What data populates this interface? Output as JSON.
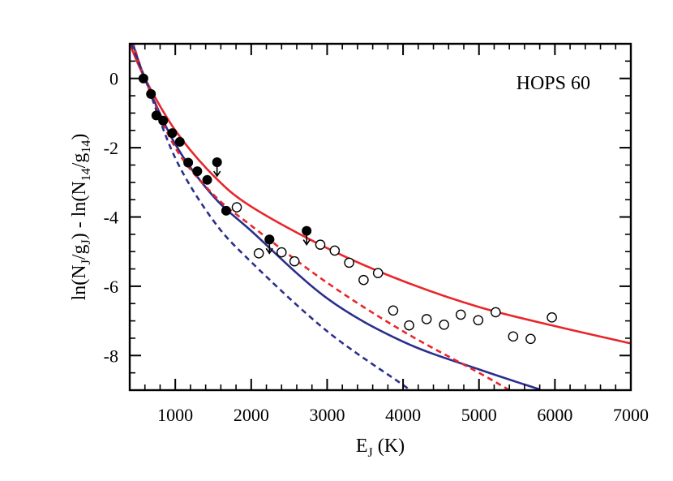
{
  "chart_data": {
    "type": "scatter",
    "annotation": "HOPS 60",
    "xlabel": {
      "main": "E",
      "sub": "J",
      "tail": " (K)"
    },
    "ylabel": {
      "parts": [
        {
          "t": "ln(N"
        },
        {
          "t": "J",
          "sub": true
        },
        {
          "t": "/g"
        },
        {
          "t": "J",
          "sub": true
        },
        {
          "t": ") - ln(N"
        },
        {
          "t": "14",
          "sub": true
        },
        {
          "t": "/g"
        },
        {
          "t": "14",
          "sub": true
        },
        {
          "t": ")"
        }
      ]
    },
    "xlim": [
      400,
      7000
    ],
    "ylim": [
      -9,
      1
    ],
    "xticks": [
      1000,
      2000,
      3000,
      4000,
      5000,
      6000,
      7000
    ],
    "yticks": [
      0,
      -2,
      -4,
      -6,
      -8
    ],
    "grid": false,
    "colors": {
      "red": "#e8262b",
      "blue": "#2c2e8c",
      "axes": "#000000"
    },
    "series": [
      {
        "marker": "filled-circle",
        "points": [
          [
            580,
            0.0
          ],
          [
            680,
            -0.45
          ],
          [
            750,
            -1.07
          ],
          [
            840,
            -1.22
          ],
          [
            960,
            -1.58
          ],
          [
            1060,
            -1.83
          ],
          [
            1170,
            -2.43
          ],
          [
            1290,
            -2.68
          ],
          [
            1420,
            -2.93
          ],
          [
            1670,
            -3.82
          ],
          [
            2240,
            -4.65
          ]
        ]
      },
      {
        "marker": "filled-circle-upper-limit",
        "points": [
          [
            1550,
            -2.42
          ],
          [
            2240,
            -4.65
          ],
          [
            2730,
            -4.4
          ]
        ]
      },
      {
        "marker": "open-circle",
        "points": [
          [
            1810,
            -3.72
          ],
          [
            2100,
            -5.05
          ],
          [
            2400,
            -5.02
          ],
          [
            2570,
            -5.28
          ],
          [
            2910,
            -4.8
          ],
          [
            3100,
            -4.97
          ],
          [
            3290,
            -5.32
          ],
          [
            3480,
            -5.82
          ],
          [
            3670,
            -5.62
          ],
          [
            3870,
            -6.7
          ],
          [
            4080,
            -7.13
          ],
          [
            4310,
            -6.95
          ],
          [
            4540,
            -7.11
          ],
          [
            4760,
            -6.82
          ],
          [
            4990,
            -6.98
          ],
          [
            5220,
            -6.75
          ],
          [
            5450,
            -7.45
          ],
          [
            5680,
            -7.52
          ],
          [
            5960,
            -6.9
          ]
        ]
      },
      {
        "line": "solid",
        "color": "red",
        "points": [
          [
            400,
            1.0
          ],
          [
            600,
            0.0
          ],
          [
            1000,
            -1.5
          ],
          [
            1500,
            -2.8
          ],
          [
            2000,
            -3.7
          ],
          [
            3000,
            -4.9
          ],
          [
            4000,
            -5.85
          ],
          [
            5000,
            -6.6
          ],
          [
            6000,
            -7.15
          ],
          [
            7000,
            -7.65
          ]
        ]
      },
      {
        "line": "solid",
        "color": "blue",
        "points": [
          [
            400,
            1.3
          ],
          [
            600,
            0.0
          ],
          [
            1000,
            -1.9
          ],
          [
            1500,
            -3.4
          ],
          [
            2000,
            -4.4
          ],
          [
            3000,
            -6.35
          ],
          [
            4000,
            -7.6
          ],
          [
            5000,
            -8.4
          ],
          [
            5800,
            -8.98
          ]
        ]
      },
      {
        "line": "dashed",
        "color": "red",
        "points": [
          [
            400,
            1.35
          ],
          [
            600,
            0.0
          ],
          [
            1000,
            -2.0
          ],
          [
            1500,
            -3.35
          ],
          [
            2000,
            -4.25
          ],
          [
            3000,
            -5.9
          ],
          [
            4000,
            -7.3
          ],
          [
            5000,
            -8.5
          ],
          [
            5400,
            -9.0
          ]
        ]
      },
      {
        "line": "dashed",
        "color": "blue",
        "points": [
          [
            420,
            1.0
          ],
          [
            600,
            0.0
          ],
          [
            1000,
            -2.3
          ],
          [
            1500,
            -4.1
          ],
          [
            2000,
            -5.3
          ],
          [
            3000,
            -7.3
          ],
          [
            4000,
            -8.85
          ],
          [
            4070,
            -9.0
          ]
        ]
      }
    ]
  }
}
